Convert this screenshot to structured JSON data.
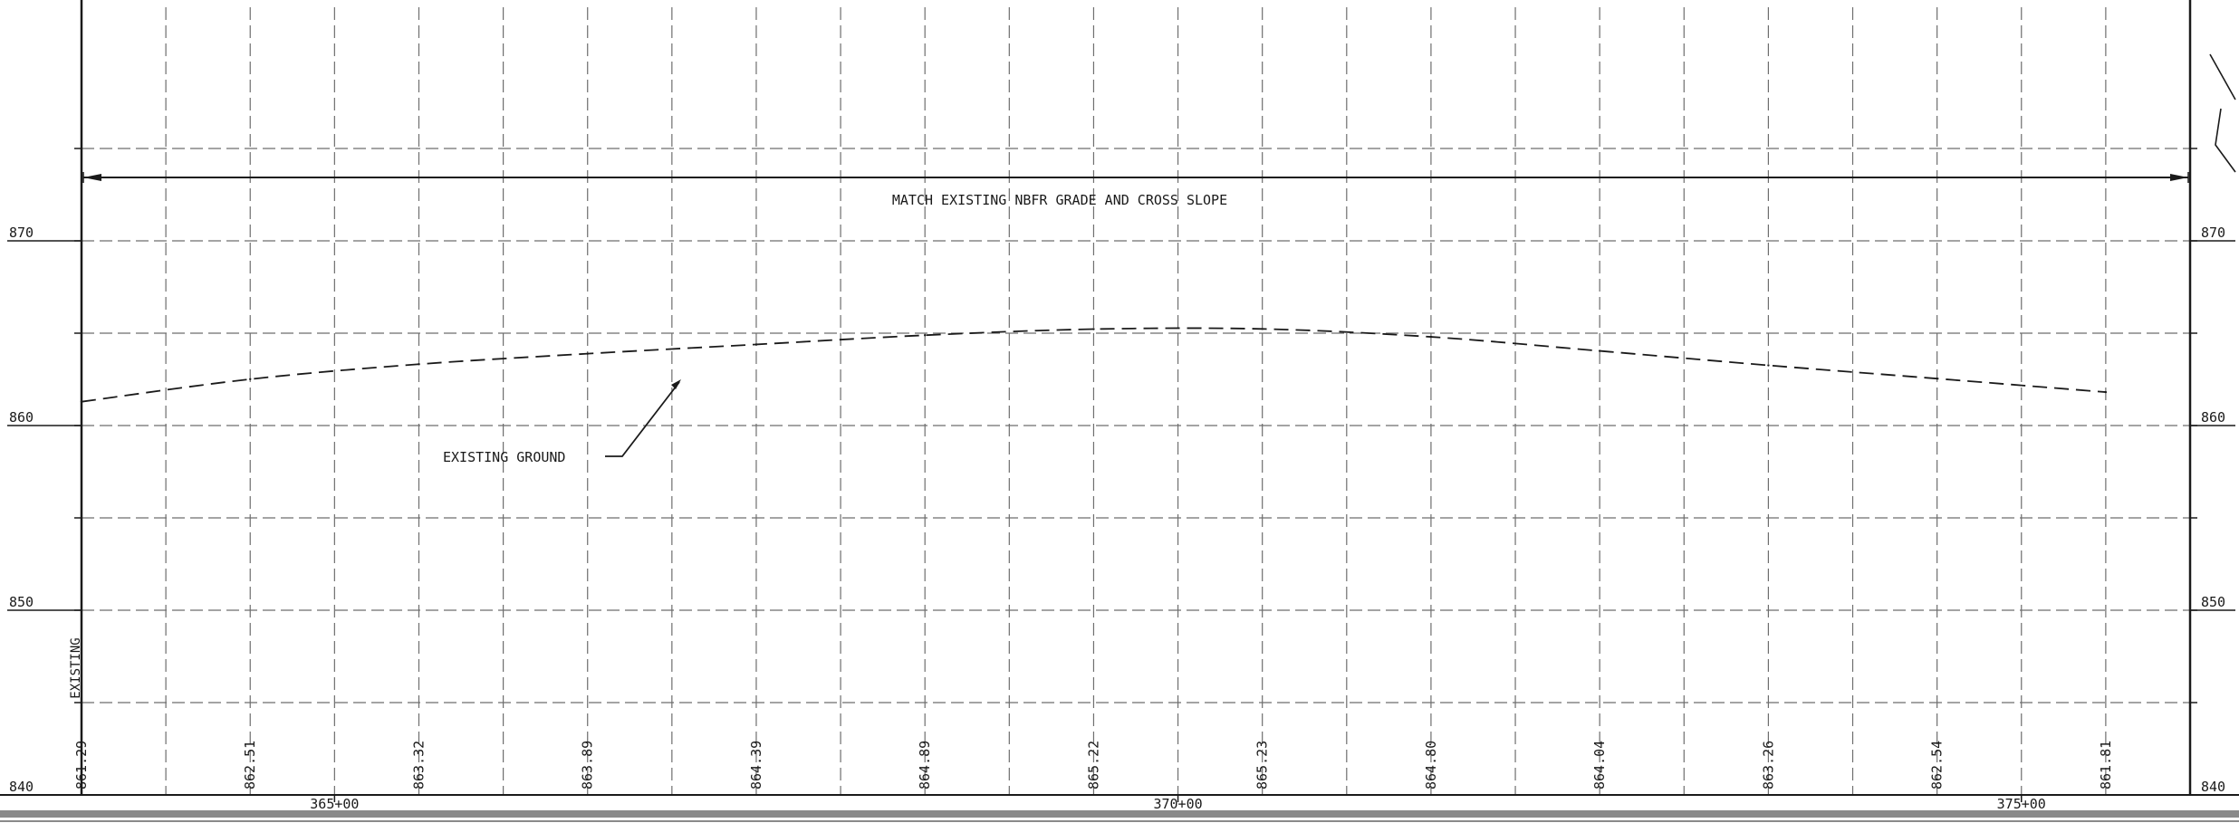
{
  "note": "MATCH EXISTING NBFR GRADE AND CROSS SLOPE",
  "callout": "EXISTING GROUND",
  "side_label": "EXISTING",
  "elevation_labels": {
    "left": [
      "870",
      "860",
      "850",
      "840"
    ],
    "right": [
      "870",
      "860",
      "850",
      "840"
    ]
  },
  "station_labels": [
    "365+00",
    "370+00",
    "375+00"
  ],
  "chart_data": {
    "type": "line",
    "title": "",
    "xlabel": "",
    "ylabel": "",
    "x_unit": "station (ft)",
    "xlim": [
      36350,
      37600
    ],
    "ylim": [
      840,
      877
    ],
    "y_ticks": [
      840,
      850,
      860,
      870
    ],
    "x_ticks": [
      36500,
      37000,
      37500
    ],
    "grid": true,
    "series": [
      {
        "name": "",
        "style": "dashed",
        "x": [
          36350,
          36450,
          36550,
          36650,
          36750,
          36850,
          36950,
          37050,
          37150,
          37250,
          37350,
          37450,
          37550
        ],
        "y": [
          861.29,
          862.51,
          863.32,
          863.89,
          864.39,
          864.89,
          865.22,
          865.23,
          864.8,
          864.04,
          863.26,
          862.54,
          861.81
        ],
        "value_labels": [
          "861.29",
          "862.51",
          "863.32",
          "863.89",
          "864.39",
          "864.89",
          "865.22",
          "865.23",
          "864.80",
          "864.04",
          "863.26",
          "862.54",
          "861.81"
        ]
      }
    ]
  },
  "colors": {
    "line": "#1a1a1a",
    "grid": "#6e6e6e",
    "bottom_band": "#8a8a8a"
  }
}
